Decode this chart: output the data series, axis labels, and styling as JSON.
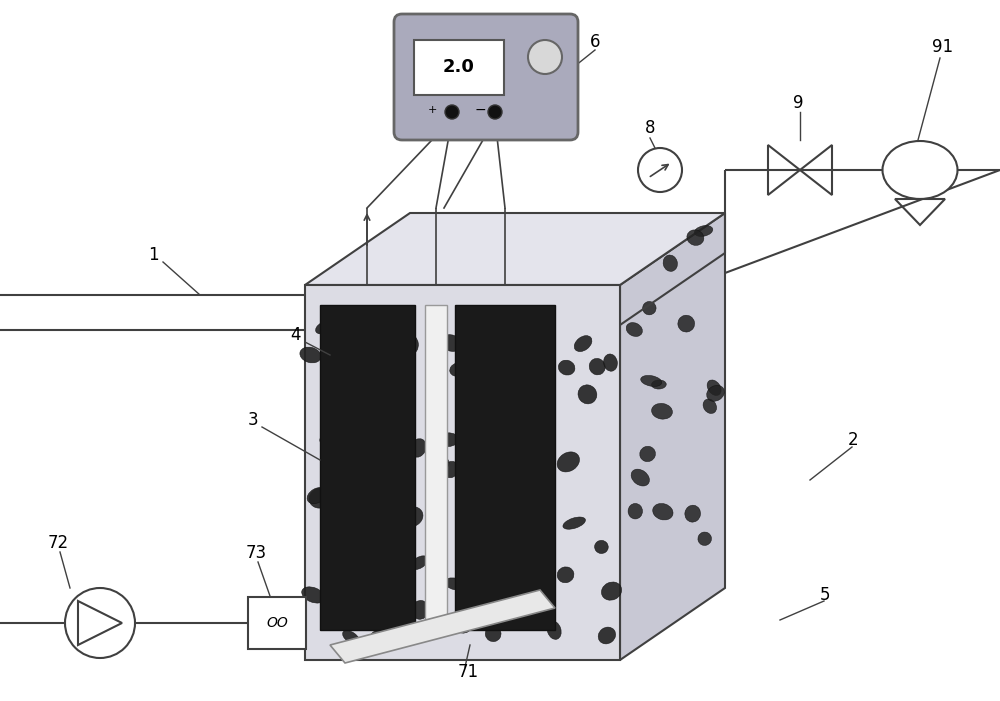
{
  "bg_color": "#ffffff",
  "line_color": "#404040",
  "tank_front_color": "#dcdce4",
  "tank_right_color": "#c8c8d4",
  "tank_top_color": "#e4e4ec",
  "electrode_dark": "#1a1a1a",
  "electrode_light": "#f0f0f0",
  "ps_color": "#aaaabc",
  "label_fontsize": 12,
  "particle_color": "#222222"
}
